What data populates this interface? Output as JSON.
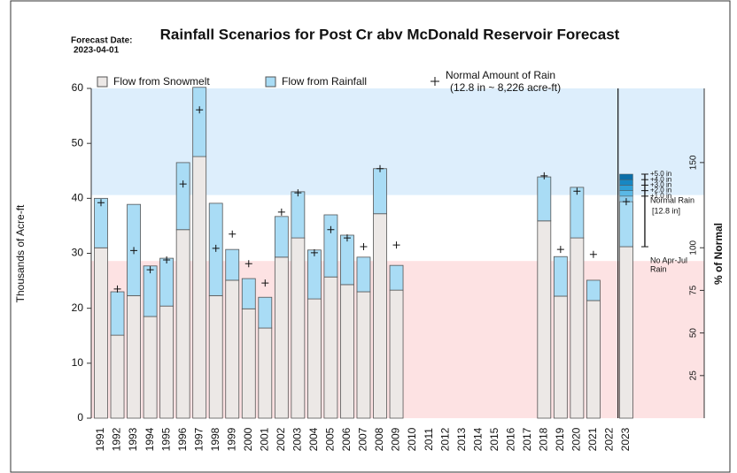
{
  "chart_data": {
    "type": "bar",
    "title": "Rainfall Scenarios for Post Cr abv McDonald Reservoir Forecast",
    "forecast_label": "Forecast Date:",
    "forecast_date": "2023-04-01",
    "ylabel": "Thousands of Acre-ft",
    "y2label": "% of Normal",
    "categories": [
      "1991",
      "1992",
      "1993",
      "1994",
      "1995",
      "1996",
      "1997",
      "1998",
      "1999",
      "2000",
      "2001",
      "2002",
      "2003",
      "2004",
      "2005",
      "2006",
      "2007",
      "2008",
      "2009",
      "2010",
      "2011",
      "2012",
      "2013",
      "2014",
      "2015",
      "2016",
      "2017",
      "2018",
      "2019",
      "2020",
      "2021",
      "2022",
      "2023"
    ],
    "series": [
      {
        "name": "Flow from Snowmelt",
        "color": "#ece8e6",
        "values": [
          31,
          15.1,
          22.3,
          18.5,
          20.4,
          34.3,
          47.6,
          22.3,
          25.1,
          19.9,
          16.4,
          29.3,
          32.8,
          21.7,
          25.7,
          24.3,
          23,
          37.2,
          23.3,
          null,
          null,
          null,
          null,
          null,
          null,
          null,
          null,
          35.9,
          22.2,
          32.8,
          21.4,
          null,
          31.2
        ]
      },
      {
        "name": "Flow from Rainfall",
        "color": "#a9dcf5",
        "values": [
          9,
          7.9,
          16.6,
          9.2,
          8.7,
          12.2,
          12.6,
          16.8,
          5.6,
          5.5,
          5.6,
          7.4,
          8.4,
          8.9,
          11.3,
          9,
          6.3,
          8.2,
          4.5,
          null,
          null,
          null,
          null,
          null,
          null,
          null,
          null,
          8,
          7.2,
          9.2,
          3.7,
          null,
          8.2
        ]
      }
    ],
    "normal": {
      "name": "Normal Amount of Rain",
      "note": "(12.8 in ~ 8,226 acre-ft)",
      "values": [
        39.2,
        23.5,
        30.5,
        27,
        28.8,
        42.6,
        56.1,
        30.9,
        33.5,
        28.1,
        24.6,
        37.5,
        41,
        30.1,
        34.3,
        32.8,
        31.2,
        45.4,
        31.5,
        null,
        null,
        null,
        null,
        null,
        null,
        null,
        null,
        44.1,
        30.7,
        41.3,
        29.8,
        null,
        39.4
      ]
    },
    "scenarios": [
      {
        "label": "+1.0 in",
        "value": 1.0,
        "color": "#8ccdee"
      },
      {
        "label": "+2.0 in",
        "value": 1.0,
        "color": "#5ab8e6"
      },
      {
        "label": "+3.0 in",
        "value": 1.0,
        "color": "#2f9fd6"
      },
      {
        "label": "+4.0 in",
        "value": 1.0,
        "color": "#1787c3"
      },
      {
        "label": "+5.0 in",
        "value": 1.0,
        "color": "#0a6ea8"
      }
    ],
    "normal_rain_label": "Normal Rain",
    "normal_rain_amount": "[12.8 in]",
    "no_rain_label": "No Apr-Jul",
    "no_rain_label2": "Rain",
    "bands": {
      "low": 28.6,
      "high": 40.6,
      "low_color": "#fde2e3",
      "high_color": "#ddeefc"
    },
    "ylim": [
      0,
      60
    ],
    "yticks": [
      0,
      10,
      20,
      30,
      40,
      50,
      60
    ],
    "y2lim": [
      0,
      193.5
    ],
    "y2ticks": [
      25,
      50,
      75,
      100,
      150
    ]
  }
}
